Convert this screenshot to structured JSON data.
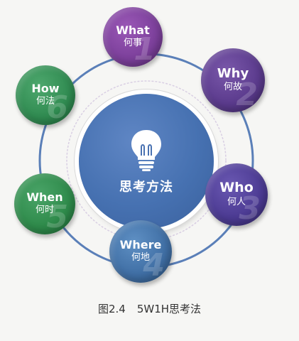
{
  "center": {
    "title": "思考方法",
    "icon": "lightbulb-icon"
  },
  "nodes": [
    {
      "en": "What",
      "zh": "何事",
      "num": "1",
      "color": "#7b3f9a"
    },
    {
      "en": "Why",
      "zh": "何故",
      "num": "2",
      "color": "#5a3a8c"
    },
    {
      "en": "Who",
      "zh": "何人",
      "num": "3",
      "color": "#4b3a92"
    },
    {
      "en": "Where",
      "zh": "何地",
      "num": "4",
      "color": "#3f6ea4"
    },
    {
      "en": "When",
      "zh": "何时",
      "num": "5",
      "color": "#2e8a4a"
    },
    {
      "en": "How",
      "zh": "何法",
      "num": "6",
      "color": "#2f8a50"
    }
  ],
  "caption": {
    "figure": "图2.4",
    "title": "5W1H思考法"
  },
  "colors": {
    "ring": "#5a7fb8",
    "background": "#f6f6f4"
  }
}
